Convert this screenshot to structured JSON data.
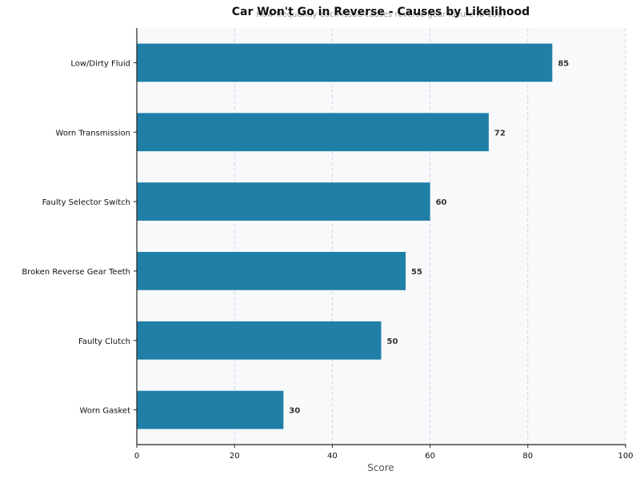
{
  "chart_data": {
    "type": "bar",
    "orientation": "horizontal",
    "title": "Car Won't Go in Reverse - Causes by Likelihood",
    "subtitle": "How frequently each issue causes reverse gear failure (0-100)",
    "xlabel": "Score",
    "ylabel": "",
    "xlim": [
      0,
      100
    ],
    "xticks": [
      0,
      20,
      40,
      60,
      80,
      100
    ],
    "categories": [
      "Low/Dirty Fluid",
      "Worn Transmission",
      "Faulty Selector Switch",
      "Broken Reverse Gear Teeth",
      "Faulty Clutch",
      "Worn Gasket"
    ],
    "values": [
      85,
      72,
      60,
      55,
      50,
      30
    ],
    "grid": "x-dashed",
    "legend": "none",
    "colors": {
      "bar": "#1f7fa6",
      "plot_background": "#f7f9fb",
      "grid": "#c8d0d8",
      "axis": "#222222",
      "subtitle": "#999999",
      "xlabel": "#555555",
      "value_label": "#333333"
    }
  }
}
